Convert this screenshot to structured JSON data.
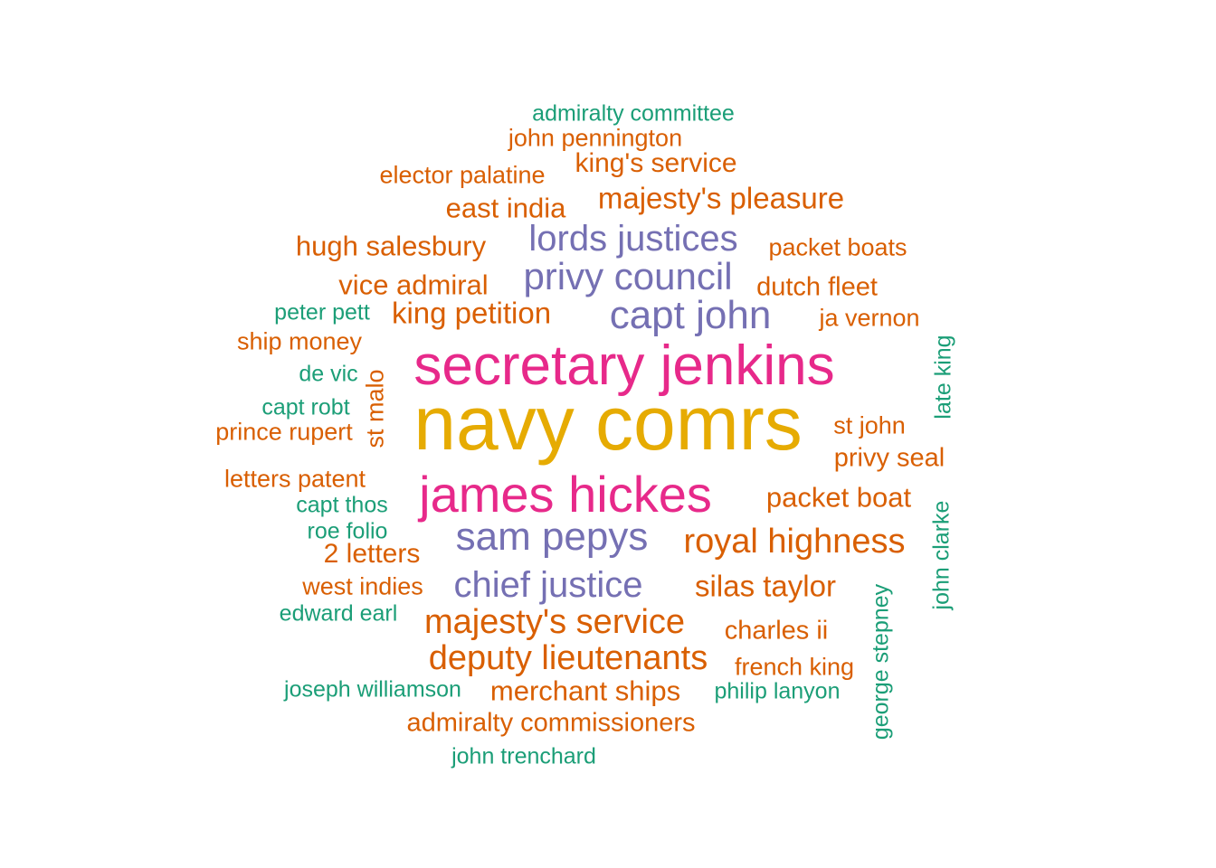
{
  "colors": {
    "green": "#1b9e77",
    "orange": "#d95f02",
    "purple": "#7570b3",
    "magenta": "#e7298a",
    "gold": "#e6ab02"
  },
  "chart_data": {
    "type": "wordcloud",
    "words": [
      {
        "text": "navy comrs",
        "group": "gold"
      },
      {
        "text": "secretary jenkins",
        "group": "magenta"
      },
      {
        "text": "james hickes",
        "group": "magenta"
      },
      {
        "text": "capt john",
        "group": "purple"
      },
      {
        "text": "privy council",
        "group": "purple"
      },
      {
        "text": "lords justices",
        "group": "purple"
      },
      {
        "text": "sam pepys",
        "group": "purple"
      },
      {
        "text": "chief justice",
        "group": "purple"
      },
      {
        "text": "royal highness",
        "group": "orange"
      },
      {
        "text": "deputy lieutenants",
        "group": "orange"
      },
      {
        "text": "majesty's service",
        "group": "orange"
      },
      {
        "text": "majesty's pleasure",
        "group": "orange"
      },
      {
        "text": "king petition",
        "group": "orange"
      },
      {
        "text": "silas taylor",
        "group": "orange"
      },
      {
        "text": "packet boat",
        "group": "orange"
      },
      {
        "text": "vice admiral",
        "group": "orange"
      },
      {
        "text": "hugh salesbury",
        "group": "orange"
      },
      {
        "text": "east india",
        "group": "orange"
      },
      {
        "text": "king's service",
        "group": "orange"
      },
      {
        "text": "merchant ships",
        "group": "orange"
      },
      {
        "text": "privy seal",
        "group": "orange"
      },
      {
        "text": "dutch fleet",
        "group": "orange"
      },
      {
        "text": "charles ii",
        "group": "orange"
      },
      {
        "text": "admiralty commissioners",
        "group": "orange"
      },
      {
        "text": "2 letters",
        "group": "orange"
      },
      {
        "text": "john pennington",
        "group": "orange"
      },
      {
        "text": "elector palatine",
        "group": "orange"
      },
      {
        "text": "packet boats",
        "group": "orange"
      },
      {
        "text": "ja vernon",
        "group": "orange"
      },
      {
        "text": "ship money",
        "group": "orange"
      },
      {
        "text": "prince rupert",
        "group": "orange"
      },
      {
        "text": "letters patent",
        "group": "orange"
      },
      {
        "text": "st john",
        "group": "orange"
      },
      {
        "text": "west indies",
        "group": "orange"
      },
      {
        "text": "french king",
        "group": "orange"
      },
      {
        "text": "st malo",
        "group": "orange"
      },
      {
        "text": "admiralty committee",
        "group": "green"
      },
      {
        "text": "peter pett",
        "group": "green"
      },
      {
        "text": "de vic",
        "group": "green"
      },
      {
        "text": "capt robt",
        "group": "green"
      },
      {
        "text": "capt thos",
        "group": "green"
      },
      {
        "text": "roe folio",
        "group": "green"
      },
      {
        "text": "edward earl",
        "group": "green"
      },
      {
        "text": "joseph williamson",
        "group": "green"
      },
      {
        "text": "philip lanyon",
        "group": "green"
      },
      {
        "text": "john trenchard",
        "group": "green"
      },
      {
        "text": "late king",
        "group": "green"
      },
      {
        "text": "john clarke",
        "group": "green"
      },
      {
        "text": "george stepney",
        "group": "green"
      }
    ]
  }
}
